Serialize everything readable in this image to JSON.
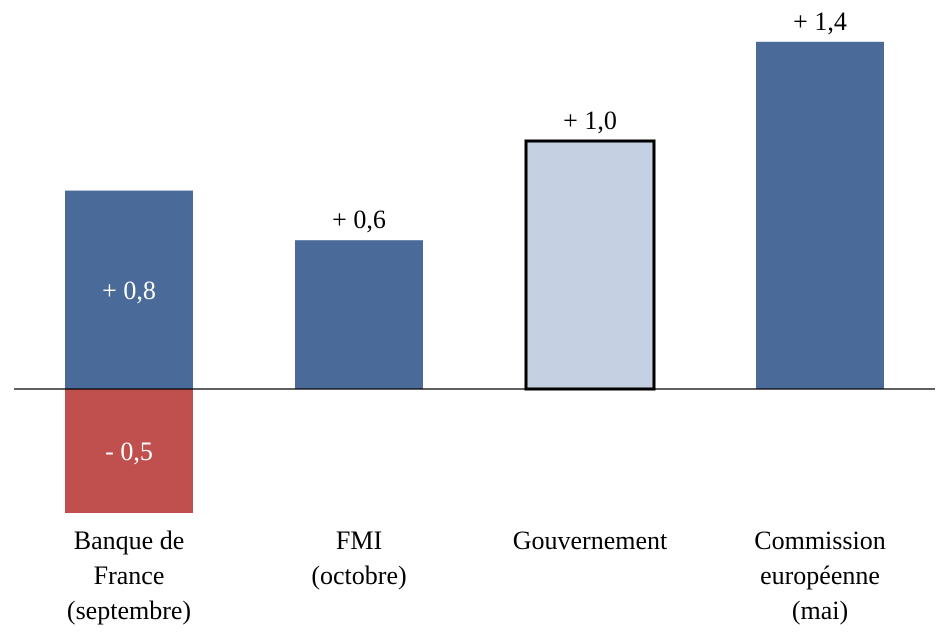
{
  "chart_data": {
    "type": "bar",
    "title": "",
    "xlabel": "",
    "ylabel": "",
    "ylim": [
      -0.6,
      1.55
    ],
    "grid": false,
    "categories": [
      [
        "Banque de",
        "France",
        "(septembre)"
      ],
      [
        "FMI",
        "(octobre)"
      ],
      [
        "Gouvernement"
      ],
      [
        "Commission",
        "européenne",
        "(mai)"
      ]
    ],
    "bars": [
      [
        {
          "value": 0.8,
          "label": "+ 0,8",
          "color": "#4A6A9A",
          "label_inside": true
        },
        {
          "value": -0.5,
          "label": "- 0,5",
          "color": "#C0504D",
          "label_inside": true
        }
      ],
      [
        {
          "value": 0.6,
          "label": "+ 0,6",
          "color": "#4A6A9A",
          "label_inside": false
        }
      ],
      [
        {
          "value": 1.0,
          "label": "+ 1,0",
          "color": "#C5D0E2",
          "label_inside": false,
          "outlined": true
        }
      ],
      [
        {
          "value": 1.4,
          "label": "+ 1,4",
          "color": "#4A6A9A",
          "label_inside": false
        }
      ]
    ]
  }
}
